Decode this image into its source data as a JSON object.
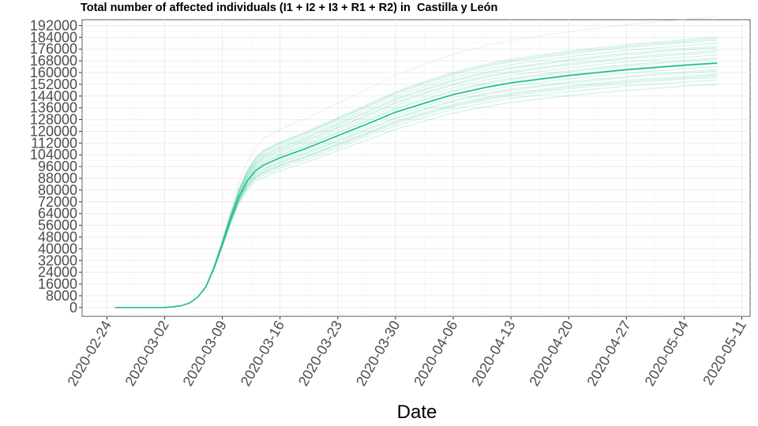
{
  "chart_data": {
    "type": "line",
    "title": "Total number of affected individuals (I1 + I2 + I3 + R1 + R2) in  Castilla y León",
    "xlabel": "Date",
    "ylabel": "",
    "x_ticks": [
      "2020-02-24",
      "2020-03-02",
      "2020-03-09",
      "2020-03-16",
      "2020-03-23",
      "2020-03-30",
      "2020-04-06",
      "2020-04-13",
      "2020-04-20",
      "2020-04-27",
      "2020-05-04",
      "2020-05-11"
    ],
    "y_ticks": [
      0,
      8000,
      16000,
      24000,
      32000,
      40000,
      48000,
      56000,
      64000,
      72000,
      80000,
      88000,
      96000,
      104000,
      112000,
      120000,
      128000,
      136000,
      144000,
      152000,
      160000,
      168000,
      176000,
      184000,
      192000
    ],
    "xlim": [
      "2020-02-21",
      "2020-05-12"
    ],
    "ylim": [
      -6000,
      196000
    ],
    "grid": true,
    "colors": {
      "main": "#1fbf8f",
      "ensemble": "#1fbf8f",
      "outlier": "#cccccc"
    },
    "series": [
      {
        "role": "median",
        "points": [
          [
            "2020-02-25",
            0
          ],
          [
            "2020-02-28",
            0
          ],
          [
            "2020-03-02",
            0
          ],
          [
            "2020-03-03",
            500
          ],
          [
            "2020-03-04",
            1200
          ],
          [
            "2020-03-05",
            3000
          ],
          [
            "2020-03-06",
            7000
          ],
          [
            "2020-03-07",
            14000
          ],
          [
            "2020-03-08",
            27000
          ],
          [
            "2020-03-09",
            43000
          ],
          [
            "2020-03-10",
            60000
          ],
          [
            "2020-03-11",
            75000
          ],
          [
            "2020-03-12",
            86000
          ],
          [
            "2020-03-13",
            93000
          ],
          [
            "2020-03-14",
            97000
          ],
          [
            "2020-03-16",
            102000
          ],
          [
            "2020-03-19",
            108000
          ],
          [
            "2020-03-23",
            117000
          ],
          [
            "2020-03-27",
            126000
          ],
          [
            "2020-03-30",
            133000
          ],
          [
            "2020-04-03",
            140000
          ],
          [
            "2020-04-06",
            145000
          ],
          [
            "2020-04-10",
            150000
          ],
          [
            "2020-04-13",
            153000
          ],
          [
            "2020-04-20",
            158000
          ],
          [
            "2020-04-27",
            162000
          ],
          [
            "2020-05-04",
            165000
          ],
          [
            "2020-05-08",
            166500
          ]
        ]
      }
    ],
    "ensemble_final_values": [
      152000,
      155000,
      157000,
      158000,
      159000,
      161000,
      162000,
      164000,
      166000,
      167000,
      169000,
      170000,
      172000,
      174000,
      175000,
      177000,
      178000,
      180000,
      182000,
      183000,
      184000
    ],
    "outlier_final_value": 198000
  }
}
